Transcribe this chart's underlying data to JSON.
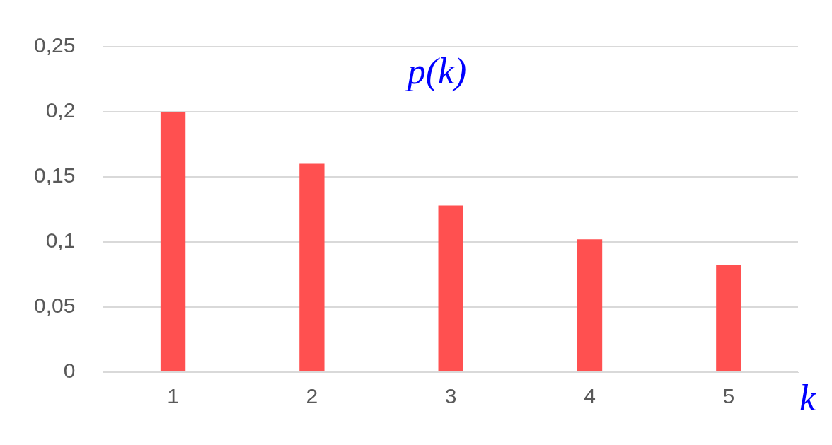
{
  "chart_data": {
    "type": "bar",
    "ylabel": "p(k)",
    "xlabel": "k",
    "categories": [
      "1",
      "2",
      "3",
      "4",
      "5"
    ],
    "values": [
      0.2,
      0.16,
      0.128,
      0.102,
      0.082
    ],
    "color": "#ff5050",
    "ylim": [
      0,
      0.25
    ],
    "yticks": [
      0,
      {
        "value": 0.05,
        "label": "0,05"
      },
      {
        "value": 0.1,
        "label": "0,1"
      },
      {
        "value": 0.15,
        "label": "0,15"
      },
      {
        "value": 0.2,
        "label": "0,2"
      },
      {
        "value": 0.25,
        "label": "0,25"
      }
    ],
    "grid": "y",
    "legend": false
  }
}
